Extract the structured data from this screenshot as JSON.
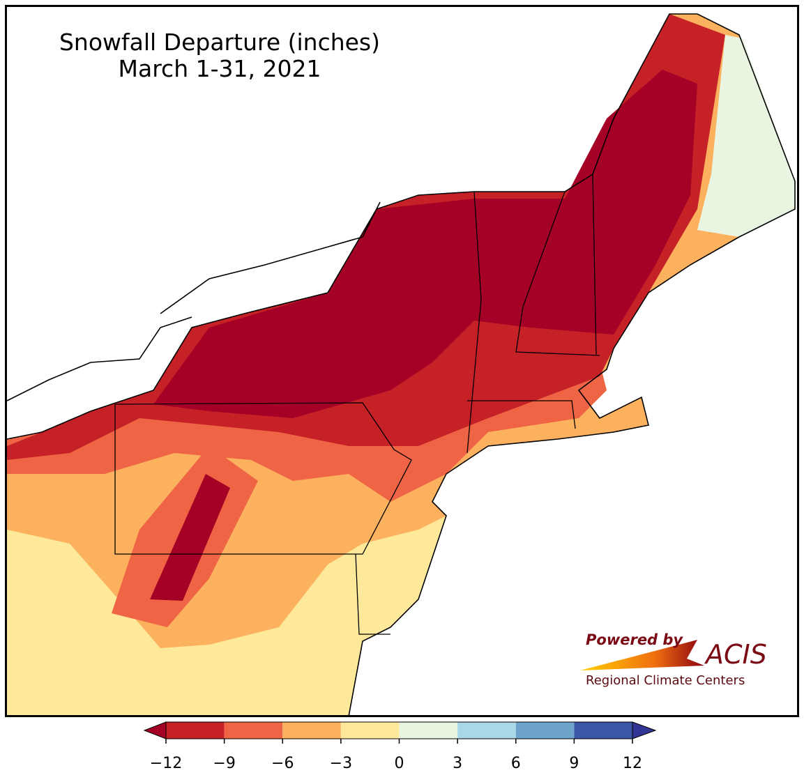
{
  "map": {
    "title": "Snowfall Departure (inches)",
    "subtitle": "March 1-31, 2021"
  },
  "colorbar": {
    "ticks": [
      {
        "value": -12,
        "label": "−12"
      },
      {
        "value": -9,
        "label": "−9"
      },
      {
        "value": -6,
        "label": "−6"
      },
      {
        "value": -3,
        "label": "−3"
      },
      0,
      3,
      6,
      9,
      12
    ],
    "colors": [
      "#c62127",
      "#ef6445",
      "#fbb15d",
      "#fee99b",
      "#e9f5e1",
      "#aad8e6",
      "#6ea3cc",
      "#3c57a8"
    ],
    "under_color": "#a50026",
    "over_color": "#313695"
  },
  "logo": {
    "powered_by": "Powered by",
    "name": "ACIS",
    "tagline": "Regional Climate Centers"
  }
}
